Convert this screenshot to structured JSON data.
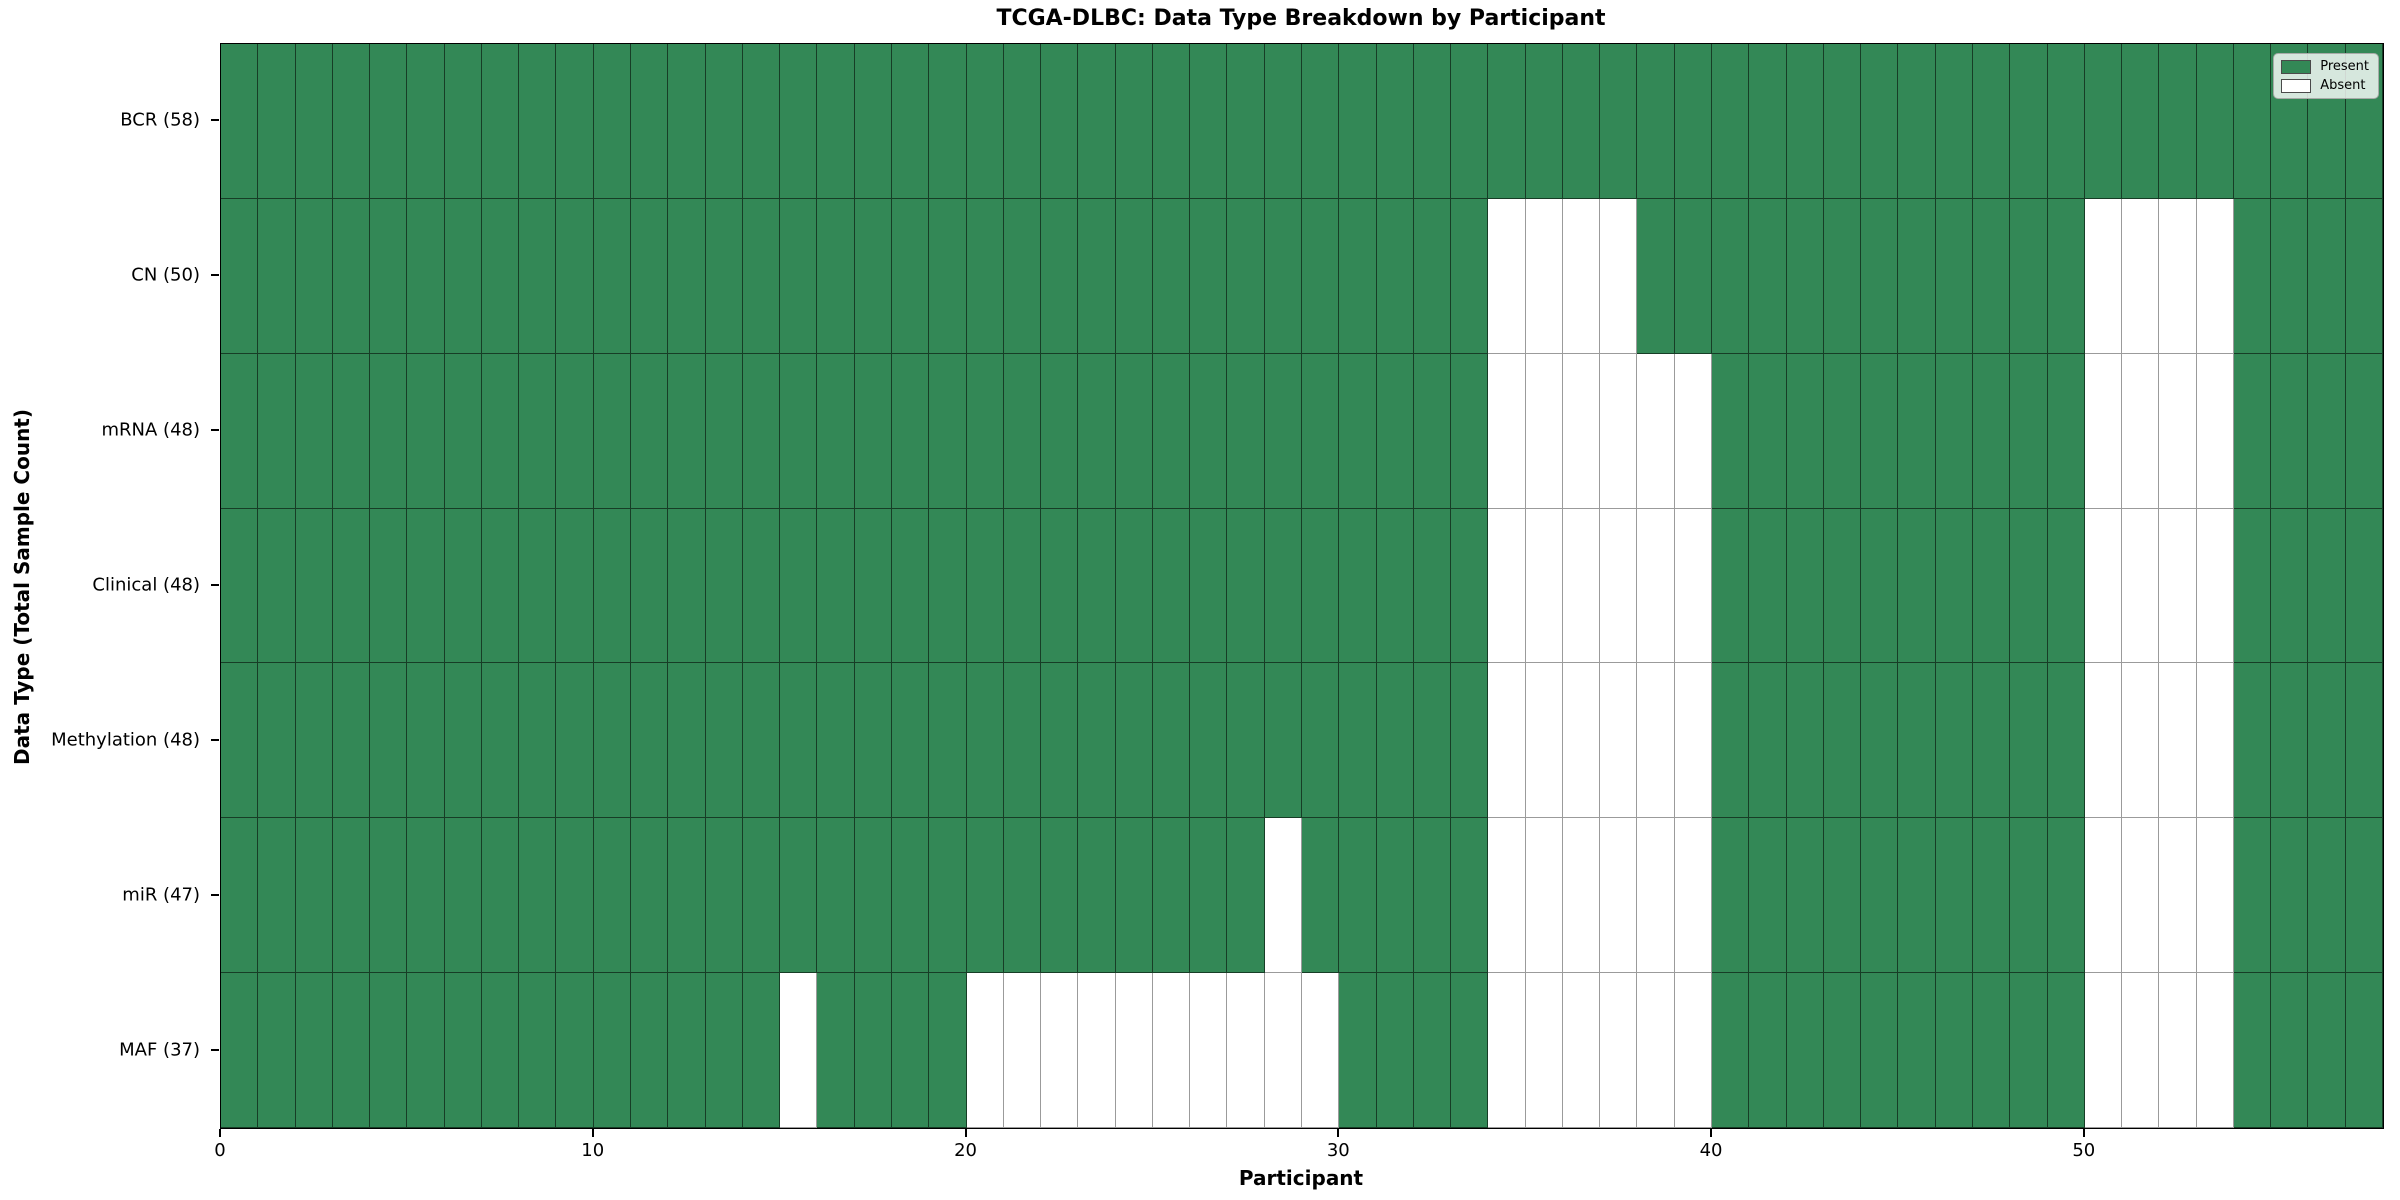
{
  "chart_data": {
    "type": "heatmap",
    "title": "TCGA-DLBC: Data Type Breakdown by Participant",
    "xlabel": "Participant",
    "ylabel": "Data Type (Total Sample Count)",
    "n_participants": 58,
    "x_ticks": [
      0,
      10,
      20,
      30,
      40,
      50
    ],
    "x_range": [
      0,
      58
    ],
    "grid": true,
    "legend_position": "upper right",
    "categories": [
      "BCR (58)",
      "CN (50)",
      "mRNA (48)",
      "Clinical (48)",
      "Methylation (48)",
      "miR (47)",
      "MAF (37)"
    ],
    "rows": [
      {
        "label": "BCR (58)",
        "present_count": 58,
        "absent_participants": []
      },
      {
        "label": "CN (50)",
        "present_count": 50,
        "absent_participants": [
          34,
          35,
          36,
          37,
          50,
          51,
          52,
          53
        ]
      },
      {
        "label": "mRNA (48)",
        "present_count": 48,
        "absent_participants": [
          34,
          35,
          36,
          37,
          38,
          39,
          50,
          51,
          52,
          53
        ]
      },
      {
        "label": "Clinical (48)",
        "present_count": 48,
        "absent_participants": [
          34,
          35,
          36,
          37,
          38,
          39,
          50,
          51,
          52,
          53
        ]
      },
      {
        "label": "Methylation (48)",
        "present_count": 48,
        "absent_participants": [
          34,
          35,
          36,
          37,
          38,
          39,
          50,
          51,
          52,
          53
        ]
      },
      {
        "label": "miR (47)",
        "present_count": 47,
        "absent_participants": [
          28,
          34,
          35,
          36,
          37,
          38,
          39,
          50,
          51,
          52,
          53
        ]
      },
      {
        "label": "MAF (37)",
        "present_count": 37,
        "absent_participants": [
          15,
          20,
          21,
          22,
          23,
          24,
          25,
          26,
          27,
          28,
          29,
          34,
          35,
          36,
          37,
          38,
          39,
          50,
          51,
          52,
          53
        ]
      }
    ],
    "legend": [
      {
        "label": "Present",
        "color": "#338856"
      },
      {
        "label": "Absent",
        "color": "#ffffff"
      }
    ],
    "colors": {
      "present": "#338856",
      "absent": "#ffffff"
    }
  }
}
